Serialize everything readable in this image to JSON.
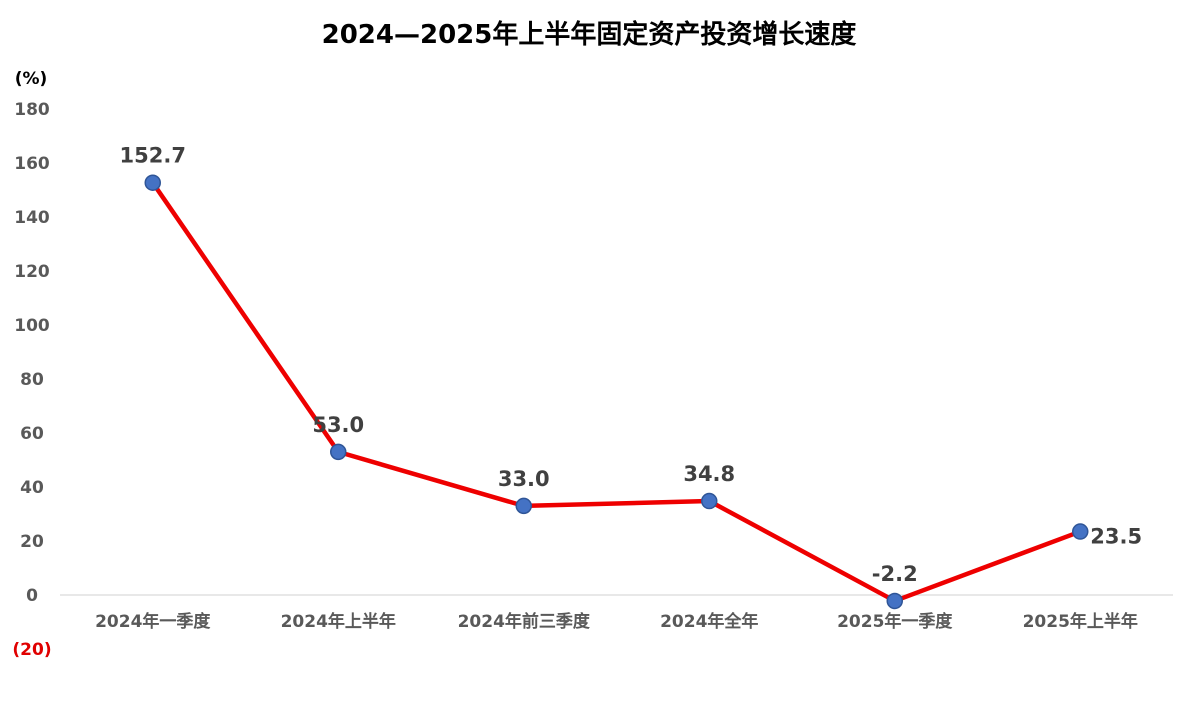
{
  "chart_data": {
    "type": "line",
    "title": "2024—2025年上半年固定资产投资增长速度",
    "ylabel": "(%)",
    "ylim": [
      -20,
      180
    ],
    "yticks": [
      "180",
      "160",
      "140",
      "120",
      "100",
      "80",
      "60",
      "40",
      "20",
      "0",
      "(20)"
    ],
    "ytick_values": [
      180,
      160,
      140,
      120,
      100,
      80,
      60,
      40,
      20,
      0,
      -20
    ],
    "categories": [
      "2024年一季度",
      "2024年上半年",
      "2024年前三季度",
      "2024年全年",
      "2025年一季度",
      "2025年上半年"
    ],
    "series": [
      {
        "values": [
          152.7,
          53.0,
          33.0,
          34.8,
          -2.2,
          23.5
        ],
        "labels": [
          "152.7",
          "53.0",
          "33.0",
          "34.8",
          "-2.2",
          "23.5"
        ]
      }
    ],
    "grid": false,
    "legend": "none",
    "colors": {
      "line": "#ee0000",
      "marker": "#4472c4",
      "marker_edge": "#2f5597",
      "negative_tick": "#e00000",
      "axis": "#d9d9d9"
    }
  }
}
